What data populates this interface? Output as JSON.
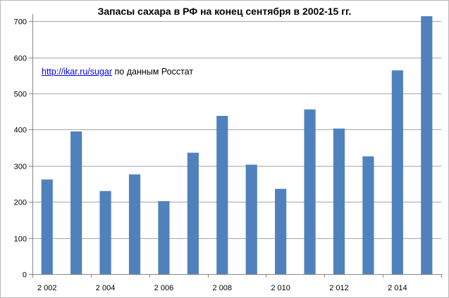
{
  "chart_data": {
    "type": "bar",
    "title": "Запасы сахара  в РФ на конец сентября в 2002-15 гг.",
    "annotation": {
      "link_text": "http://ikar.ru/sugar",
      "text": " по данным Росстат"
    },
    "categories": [
      "2002",
      "2003",
      "2004",
      "2005",
      "2006",
      "2007",
      "2008",
      "2009",
      "2010",
      "2011",
      "2012",
      "2013",
      "2014",
      "2015"
    ],
    "x_tick_labels": [
      "2 002",
      "2 004",
      "2 006",
      "2 008",
      "2 010",
      "2 012",
      "2 014"
    ],
    "values": [
      262,
      395,
      230,
      276,
      202,
      336,
      438,
      303,
      236,
      456,
      403,
      326,
      564,
      714
    ],
    "y_ticks": [
      "0",
      "100",
      "200",
      "300",
      "400",
      "500",
      "600",
      "700"
    ],
    "ylim": [
      0,
      720
    ],
    "bar_color": "#4f81bd",
    "grid": true,
    "legend": "none",
    "xlabel": "",
    "ylabel": ""
  }
}
